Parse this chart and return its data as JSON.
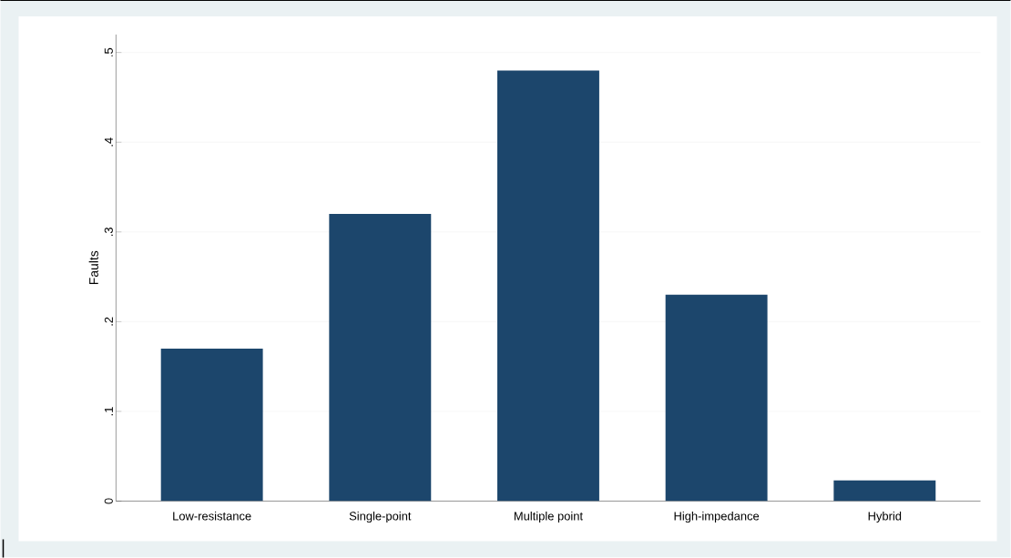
{
  "chart_data": {
    "type": "bar",
    "ylabel": "Faults",
    "categories": [
      "Low-resistance",
      "Single-point",
      "Multiple point",
      "High-impedance",
      "Hybrid"
    ],
    "values": [
      0.17,
      0.32,
      0.48,
      0.23,
      0.023
    ],
    "color": "#1c466c",
    "ylim": [
      0,
      0.52
    ],
    "yticks": [
      {
        "value": 0,
        "label": "0"
      },
      {
        "value": 0.1,
        "label": ".1"
      },
      {
        "value": 0.2,
        "label": ".2"
      },
      {
        "value": 0.3,
        "label": ".3"
      },
      {
        "value": 0.4,
        "label": ".4"
      },
      {
        "value": 0.5,
        "label": ".5"
      }
    ],
    "grid": "y"
  }
}
